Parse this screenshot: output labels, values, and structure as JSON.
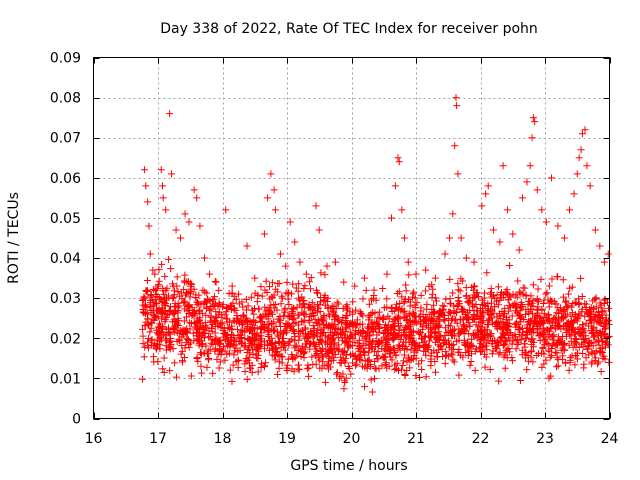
{
  "chart_data": {
    "type": "scatter",
    "title": "Day 338 of 2022, Rate Of TEC Index for receiver pohn",
    "xlabel": "GPS time / hours",
    "ylabel": "ROTI / TECUs",
    "xlim": [
      16,
      24
    ],
    "ylim": [
      0,
      0.09
    ],
    "xticks": [
      16,
      17,
      18,
      19,
      20,
      21,
      22,
      23,
      24
    ],
    "xtick_labels": [
      "16",
      "17",
      "18",
      "19",
      "20",
      "21",
      "22",
      "23",
      "24"
    ],
    "yticks": [
      0,
      0.01,
      0.02,
      0.03,
      0.04,
      0.05,
      0.06,
      0.07,
      0.08,
      0.09
    ],
    "ytick_labels": [
      "0",
      "0.01",
      "0.02",
      "0.03",
      "0.04",
      "0.05",
      "0.06",
      "0.07",
      "0.08",
      "0.09"
    ],
    "grid": true,
    "marker": "+",
    "color": "#ff0000",
    "series": [
      {
        "name": "ROTI",
        "points": [
          [
            16.79,
            0.062
          ],
          [
            16.81,
            0.058
          ],
          [
            16.84,
            0.054
          ],
          [
            16.86,
            0.048
          ],
          [
            16.88,
            0.041
          ],
          [
            16.92,
            0.037
          ],
          [
            16.95,
            0.036
          ],
          [
            17.0,
            0.033
          ],
          [
            17.05,
            0.062
          ],
          [
            17.07,
            0.058
          ],
          [
            17.08,
            0.055
          ],
          [
            17.12,
            0.052
          ],
          [
            17.18,
            0.076
          ],
          [
            17.21,
            0.061
          ],
          [
            17.28,
            0.047
          ],
          [
            17.35,
            0.045
          ],
          [
            17.42,
            0.051
          ],
          [
            17.48,
            0.049
          ],
          [
            17.56,
            0.057
          ],
          [
            17.6,
            0.055
          ],
          [
            17.65,
            0.048
          ],
          [
            17.72,
            0.04
          ],
          [
            17.8,
            0.036
          ],
          [
            17.9,
            0.034
          ],
          [
            18.05,
            0.052
          ],
          [
            18.15,
            0.033
          ],
          [
            18.25,
            0.031
          ],
          [
            18.38,
            0.043
          ],
          [
            18.5,
            0.035
          ],
          [
            18.65,
            0.046
          ],
          [
            18.7,
            0.055
          ],
          [
            18.75,
            0.061
          ],
          [
            18.8,
            0.057
          ],
          [
            18.82,
            0.052
          ],
          [
            18.9,
            0.041
          ],
          [
            18.98,
            0.038
          ],
          [
            19.05,
            0.049
          ],
          [
            19.12,
            0.044
          ],
          [
            19.2,
            0.039
          ],
          [
            19.3,
            0.036
          ],
          [
            19.45,
            0.053
          ],
          [
            19.5,
            0.047
          ],
          [
            19.62,
            0.038
          ],
          [
            19.75,
            0.039
          ],
          [
            19.88,
            0.034
          ],
          [
            20.05,
            0.033
          ],
          [
            20.2,
            0.035
          ],
          [
            20.35,
            0.032
          ],
          [
            20.55,
            0.036
          ],
          [
            20.62,
            0.05
          ],
          [
            20.68,
            0.058
          ],
          [
            20.72,
            0.065
          ],
          [
            20.74,
            0.064
          ],
          [
            20.78,
            0.052
          ],
          [
            20.82,
            0.045
          ],
          [
            20.88,
            0.039
          ],
          [
            21.0,
            0.036
          ],
          [
            21.15,
            0.037
          ],
          [
            21.3,
            0.035
          ],
          [
            21.45,
            0.041
          ],
          [
            21.52,
            0.045
          ],
          [
            21.57,
            0.051
          ],
          [
            21.6,
            0.068
          ],
          [
            21.62,
            0.08
          ],
          [
            21.63,
            0.078
          ],
          [
            21.65,
            0.061
          ],
          [
            21.7,
            0.045
          ],
          [
            21.78,
            0.04
          ],
          [
            21.9,
            0.039
          ],
          [
            22.02,
            0.053
          ],
          [
            22.08,
            0.056
          ],
          [
            22.12,
            0.058
          ],
          [
            22.2,
            0.047
          ],
          [
            22.3,
            0.044
          ],
          [
            22.35,
            0.063
          ],
          [
            22.42,
            0.052
          ],
          [
            22.5,
            0.046
          ],
          [
            22.6,
            0.042
          ],
          [
            22.65,
            0.055
          ],
          [
            22.72,
            0.059
          ],
          [
            22.77,
            0.063
          ],
          [
            22.8,
            0.07
          ],
          [
            22.82,
            0.075
          ],
          [
            22.84,
            0.074
          ],
          [
            22.88,
            0.057
          ],
          [
            22.95,
            0.052
          ],
          [
            23.02,
            0.049
          ],
          [
            23.1,
            0.06
          ],
          [
            23.2,
            0.048
          ],
          [
            23.3,
            0.045
          ],
          [
            23.38,
            0.052
          ],
          [
            23.45,
            0.056
          ],
          [
            23.5,
            0.061
          ],
          [
            23.53,
            0.065
          ],
          [
            23.56,
            0.067
          ],
          [
            23.58,
            0.071
          ],
          [
            23.62,
            0.072
          ],
          [
            23.65,
            0.063
          ],
          [
            23.7,
            0.058
          ],
          [
            23.78,
            0.047
          ],
          [
            23.85,
            0.043
          ],
          [
            23.92,
            0.039
          ],
          [
            23.98,
            0.041
          ]
        ],
        "band": {
          "x_start": 16.76,
          "x_end": 24.0,
          "segments": [
            {
              "x_from": 16.76,
              "x_to": 17.6,
              "y_base": 0.011,
              "y_top": 0.038
            },
            {
              "x_from": 17.6,
              "x_to": 18.6,
              "y_base": 0.01,
              "y_top": 0.033
            },
            {
              "x_from": 18.6,
              "x_to": 19.6,
              "y_base": 0.009,
              "y_top": 0.036
            },
            {
              "x_from": 19.6,
              "x_to": 20.6,
              "y_base": 0.008,
              "y_top": 0.032
            },
            {
              "x_from": 20.6,
              "x_to": 21.6,
              "y_base": 0.01,
              "y_top": 0.034
            },
            {
              "x_from": 21.6,
              "x_to": 22.6,
              "y_base": 0.011,
              "y_top": 0.036
            },
            {
              "x_from": 22.6,
              "x_to": 23.6,
              "y_base": 0.011,
              "y_top": 0.035
            },
            {
              "x_from": 23.6,
              "x_to": 24.0,
              "y_base": 0.011,
              "y_top": 0.034
            }
          ],
          "count": 2600
        }
      }
    ]
  }
}
